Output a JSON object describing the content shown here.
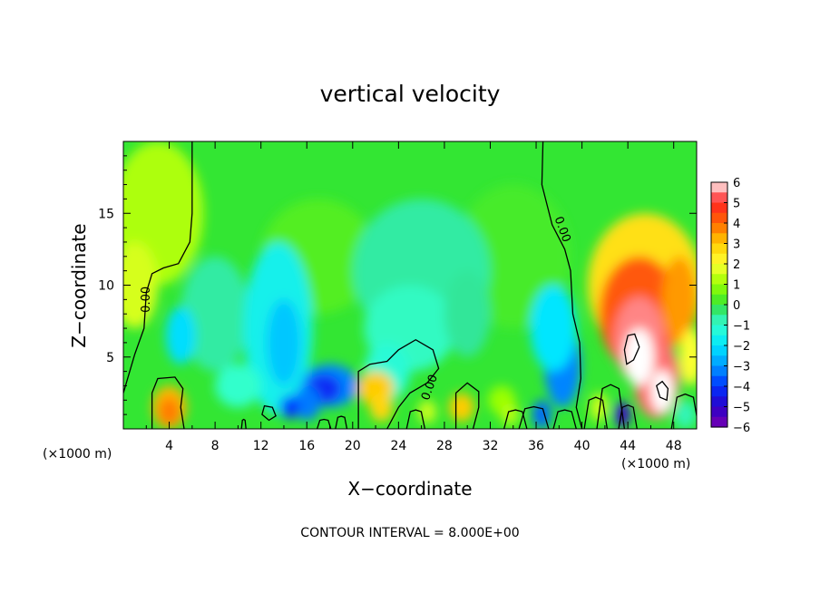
{
  "chart_data": {
    "type": "heatmap",
    "title": "vertical velocity",
    "xlabel": "X−coordinate",
    "ylabel": "Z−coordinate",
    "x_unit": "(×1000 m)",
    "x_unit_right": "(×1000 m)",
    "xlim": [
      0,
      50
    ],
    "ylim": [
      0,
      20
    ],
    "x_ticks": [
      4,
      8,
      12,
      16,
      20,
      24,
      28,
      32,
      36,
      40,
      44,
      48
    ],
    "y_ticks": [
      5,
      10,
      15
    ],
    "colorbar": {
      "min": -6,
      "max": 6,
      "ticks": [
        "6",
        "5",
        "4",
        "3",
        "2",
        "1",
        "0",
        "−1",
        "−2",
        "−3",
        "−4",
        "−5",
        "−6"
      ]
    },
    "contour_label": "0.00",
    "contour_interval_text": "CONTOUR INTERVAL = 8.000E+00",
    "colors": {
      "background_field": "#33e633",
      "updraft_max": "#ffffff",
      "downdraft_min": "#7a00b0"
    },
    "features": [
      {
        "kind": "updraft",
        "x": 45,
        "z": 5,
        "w_max": 6
      },
      {
        "kind": "updraft",
        "x": 47,
        "z": 2.5,
        "w_max": 6
      },
      {
        "kind": "updraft",
        "x": 4,
        "z": 1.5,
        "w_max": 3
      },
      {
        "kind": "updraft",
        "x": 22,
        "z": 2.5,
        "w_max": 3
      },
      {
        "kind": "updraft",
        "x": 29.5,
        "z": 1.5,
        "w_max": 3
      },
      {
        "kind": "downdraft",
        "x": 18,
        "z": 3,
        "w_min": -4
      },
      {
        "kind": "downdraft",
        "x": 38.5,
        "z": 4.5,
        "w_min": -3
      },
      {
        "kind": "downdraft",
        "x": 14,
        "z": 6,
        "w_min": -2
      },
      {
        "kind": "downdraft",
        "x": 5,
        "z": 6.5,
        "w_min": -2
      },
      {
        "kind": "downdraft",
        "x": 43.5,
        "z": 1,
        "w_min": -5
      }
    ]
  }
}
